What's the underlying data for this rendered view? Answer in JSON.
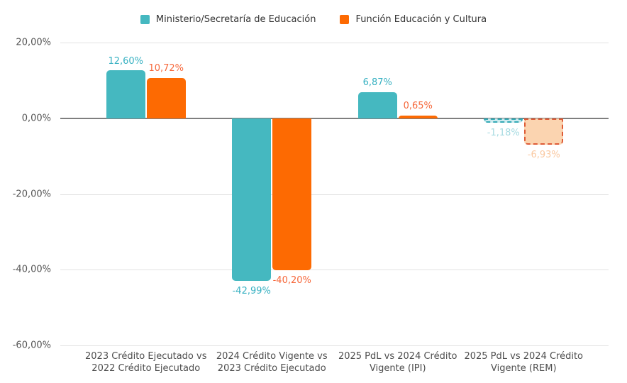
{
  "legend": {
    "items": [
      {
        "label": "Ministerio/Secretaría de Educación",
        "color": "#45B8C0"
      },
      {
        "label": "Función Educación y Cultura",
        "color": "#FD6A02"
      }
    ]
  },
  "chart_data": {
    "type": "bar",
    "title": "",
    "xlabel": "",
    "ylabel": "",
    "ylim": [
      -60,
      20
    ],
    "grid": true,
    "legend_position": "top",
    "value_format": "percent-comma-decimal",
    "categories": [
      "2023 Crédito Ejecutado vs 2022 Crédito Ejecutado",
      "2024 Crédito Vigente vs 2023 Crédito Ejecutado",
      "2025 PdL vs 2024 Crédito Vigente (IPI)",
      "2025 PdL vs 2024 Crédito Vigente (REM)"
    ],
    "series": [
      {
        "name": "Ministerio/Secretaría de Educación",
        "color": "#45B8C0",
        "label_color": "#38B1C2",
        "light_color": "#CBEAEE",
        "dash_border": "#35AAB6",
        "light_label": "#A5DAE1",
        "values": [
          12.6,
          -42.99,
          6.87,
          -1.18
        ],
        "labels": [
          "12,60%",
          "-42,99%",
          "6,87%",
          "-1,18%"
        ]
      },
      {
        "name": "Función Educación y Cultura",
        "color": "#FD6A02",
        "label_color": "#F6683B",
        "light_color": "#FBD4B0",
        "dash_border": "#DE5B36",
        "light_label": "#FAC8A0",
        "values": [
          10.72,
          -40.2,
          0.65,
          -6.93
        ],
        "labels": [
          "10,72%",
          "-40,20%",
          "0,65%",
          "-6,93%"
        ]
      }
    ],
    "dashed_category_index": 3,
    "y_ticks": [
      {
        "value": 20,
        "label": "20,00%"
      },
      {
        "value": 0,
        "label": "0,00%"
      },
      {
        "value": -20,
        "label": "-20,00%"
      },
      {
        "value": -40,
        "label": "-40,00%"
      },
      {
        "value": -60,
        "label": "-60,00%"
      }
    ]
  }
}
